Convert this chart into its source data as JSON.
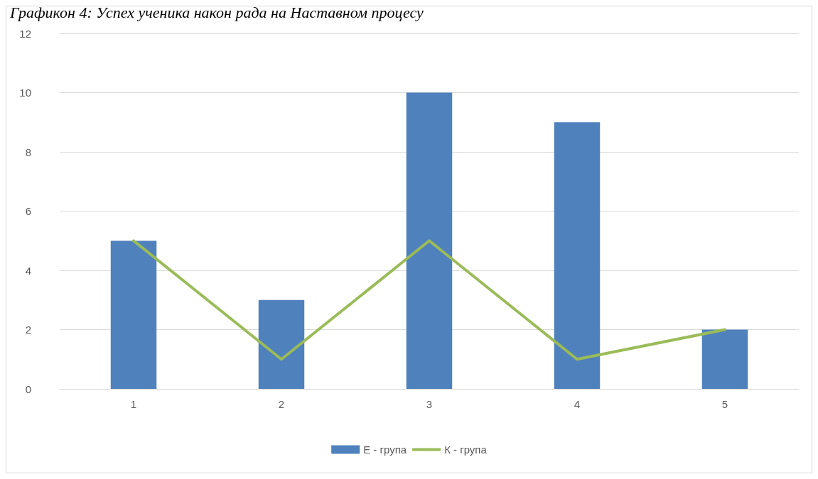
{
  "chart_data": {
    "type": "bar",
    "title": "Графикон 4: Успех ученика након рада на Наставном процесу",
    "categories": [
      "1",
      "2",
      "3",
      "4",
      "5"
    ],
    "series": [
      {
        "name": "Е - група",
        "color": "#4f81bd",
        "values": [
          5,
          3,
          10,
          9,
          2
        ]
      },
      {
        "name": "К - група",
        "type": "line",
        "color": "#9bbb59",
        "values": [
          5,
          1,
          5,
          1,
          2
        ]
      }
    ],
    "ylim": [
      0,
      12
    ],
    "yticks": [
      0,
      2,
      4,
      6,
      8,
      10,
      12
    ],
    "grid": "y",
    "legend": "bottom",
    "marker": "none"
  }
}
